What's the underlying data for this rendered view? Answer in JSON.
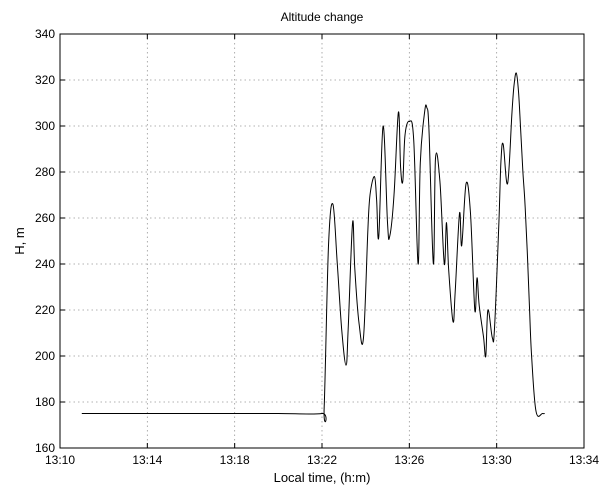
{
  "chart_data": {
    "type": "line",
    "title": "Altitude change",
    "xlabel": "Local time, (h:m)",
    "ylabel": "H, m",
    "x_ticks": [
      "13:10",
      "13:14",
      "13:18",
      "13:22",
      "13:26",
      "13:30",
      "13:34"
    ],
    "x_tick_minutes": [
      0,
      4,
      8,
      12,
      16,
      20,
      24
    ],
    "y_ticks": [
      "160",
      "180",
      "200",
      "220",
      "240",
      "260",
      "280",
      "300",
      "320",
      "340"
    ],
    "xlim": [
      "13:10",
      "13:34"
    ],
    "ylim": [
      160,
      340
    ],
    "grid": true,
    "series": [
      {
        "x": [
          "13:11:00",
          "13:15:00",
          "13:18:00",
          "13:20:00",
          "13:22:00",
          "13:22:06",
          "13:22:18",
          "13:22:30",
          "13:22:42",
          "13:22:54",
          "13:23:06",
          "13:23:12",
          "13:23:24",
          "13:23:30",
          "13:23:42",
          "13:23:54",
          "13:24:06",
          "13:24:12",
          "13:24:24",
          "13:24:30",
          "13:24:36",
          "13:24:48",
          "13:25:00",
          "13:25:06",
          "13:25:18",
          "13:25:30",
          "13:25:36",
          "13:25:42",
          "13:25:48",
          "13:26:00",
          "13:26:12",
          "13:26:24",
          "13:26:30",
          "13:26:42",
          "13:26:48",
          "13:26:54",
          "13:27:06",
          "13:27:12",
          "13:27:24",
          "13:27:36",
          "13:27:42",
          "13:27:48",
          "13:28:00",
          "13:28:06",
          "13:28:18",
          "13:28:24",
          "13:28:36",
          "13:28:48",
          "13:29:00",
          "13:29:06",
          "13:29:12",
          "13:29:24",
          "13:29:30",
          "13:29:36",
          "13:29:48",
          "13:29:54",
          "13:30:06",
          "13:30:12",
          "13:30:18",
          "13:30:30",
          "13:30:42",
          "13:30:48",
          "13:30:54",
          "13:31:00",
          "13:31:06",
          "13:31:12",
          "13:31:18",
          "13:31:24",
          "13:31:30",
          "13:31:36",
          "13:31:48",
          "13:32:06",
          "13:32:12"
        ],
        "y": [
          175,
          175,
          175,
          175,
          175,
          178,
          248,
          266,
          240,
          212,
          196,
          212,
          258,
          238,
          214,
          208,
          255,
          270,
          278,
          268,
          252,
          300,
          258,
          252,
          270,
          306,
          282,
          276,
          296,
          302,
          294,
          240,
          284,
          306,
          308,
          298,
          240,
          286,
          276,
          240,
          258,
          238,
          215,
          228,
          262,
          248,
          275,
          262,
          220,
          234,
          222,
          208,
          200,
          220,
          208,
          212,
          258,
          285,
          292,
          275,
          306,
          318,
          323,
          315,
          298,
          280,
          266,
          246,
          222,
          200,
          176,
          175,
          175
        ]
      }
    ]
  }
}
